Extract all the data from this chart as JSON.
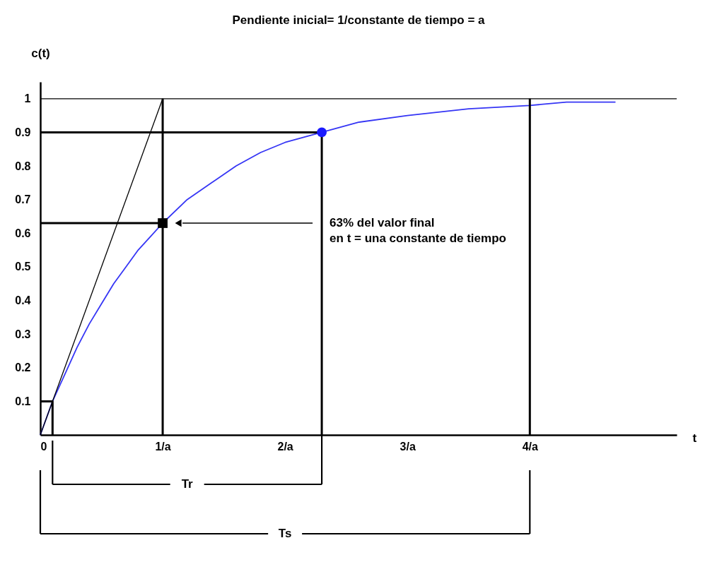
{
  "chart_data": {
    "type": "line",
    "title": "Pendiente inicial= 1/constante de tiempo = a",
    "xlabel": "t",
    "ylabel": "c(t)",
    "xlim": [
      0,
      5.2
    ],
    "ylim": [
      0,
      1.05
    ],
    "xticks": [
      0,
      {
        "value": 1,
        "label": "1/a"
      },
      {
        "value": 2,
        "label": "2/a"
      },
      {
        "value": 3,
        "label": "3/a"
      },
      {
        "value": 4,
        "label": "4/a"
      }
    ],
    "yticks": [
      0.1,
      0.2,
      0.3,
      0.4,
      0.5,
      0.6,
      0.7,
      0.8,
      0.9,
      1
    ],
    "grid": false,
    "series": [
      {
        "type": "line",
        "color": "#3535f5",
        "x": [
          0,
          0.1,
          0.2,
          0.3,
          0.4,
          0.5,
          0.6,
          0.7,
          0.8,
          0.9,
          1,
          1.2,
          1.4,
          1.6,
          1.8,
          2,
          2.3,
          2.6,
          3,
          3.5,
          4,
          4.3,
          4.7
        ],
        "values": [
          0,
          0.1,
          0.18,
          0.26,
          0.33,
          0.39,
          0.45,
          0.5,
          0.55,
          0.59,
          0.63,
          0.7,
          0.75,
          0.8,
          0.84,
          0.87,
          0.9,
          0.93,
          0.95,
          0.97,
          0.98,
          0.99,
          0.99
        ]
      },
      {
        "type": "line",
        "color": "#000000",
        "x": [
          0,
          1
        ],
        "values": [
          0,
          1
        ]
      },
      {
        "type": "line",
        "color": "#000000",
        "x": [
          0,
          1
        ],
        "values": [
          0.63,
          0.63
        ]
      },
      {
        "type": "line",
        "color": "#000000",
        "x": [
          1,
          1
        ],
        "values": [
          0,
          1
        ]
      },
      {
        "type": "line",
        "color": "#000000",
        "x": [
          0,
          2.3
        ],
        "values": [
          0.9,
          0.9
        ]
      },
      {
        "type": "line",
        "color": "#000000",
        "x": [
          2.3,
          2.3
        ],
        "values": [
          0,
          0.9
        ]
      },
      {
        "type": "line",
        "color": "#000000",
        "x": [
          4,
          4
        ],
        "values": [
          0,
          1
        ]
      },
      {
        "type": "line",
        "color": "#000000",
        "x": [
          0,
          0.1,
          0.1
        ],
        "values": [
          0.1,
          0.1,
          0
        ]
      },
      {
        "type": "scatter",
        "marker": "square",
        "color": "#000000",
        "x": [
          1
        ],
        "values": [
          0.63
        ]
      },
      {
        "type": "scatter",
        "marker": "circle",
        "color": "#1a1aff",
        "x": [
          2.3
        ],
        "values": [
          0.9
        ]
      }
    ],
    "ref_lines": [
      {
        "axis": "y",
        "value": 1
      }
    ],
    "annotations": [
      "63% del valor final\nen t = una constante de tiempo",
      "Tr",
      "Ts"
    ]
  }
}
